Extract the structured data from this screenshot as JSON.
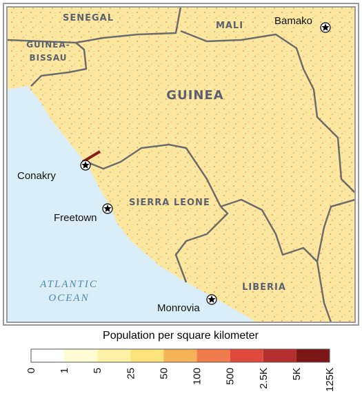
{
  "map": {
    "countries": [
      "SENEGAL",
      "MALI",
      "GUINEA",
      "SIERRA LEONE",
      "LIBERIA"
    ],
    "guinea_bissau": [
      "GUINEA-",
      "BISSAU"
    ],
    "ocean": [
      "ATLANTIC",
      "OCEAN"
    ],
    "cities": [
      "Bamako",
      "Conakry",
      "Freetown",
      "Monrovia"
    ]
  },
  "legend": {
    "title": "Population per square kilometer",
    "labels": [
      "0",
      "1",
      "5",
      "25",
      "50",
      "100",
      "500",
      "2.5K",
      "5K",
      "125K"
    ],
    "colors": [
      "#ffffff",
      "#fffbd2",
      "#fdf1a6",
      "#fbe27a",
      "#f6b257",
      "#f07c4d",
      "#e0483c",
      "#b52e2e",
      "#7d1717"
    ]
  }
}
